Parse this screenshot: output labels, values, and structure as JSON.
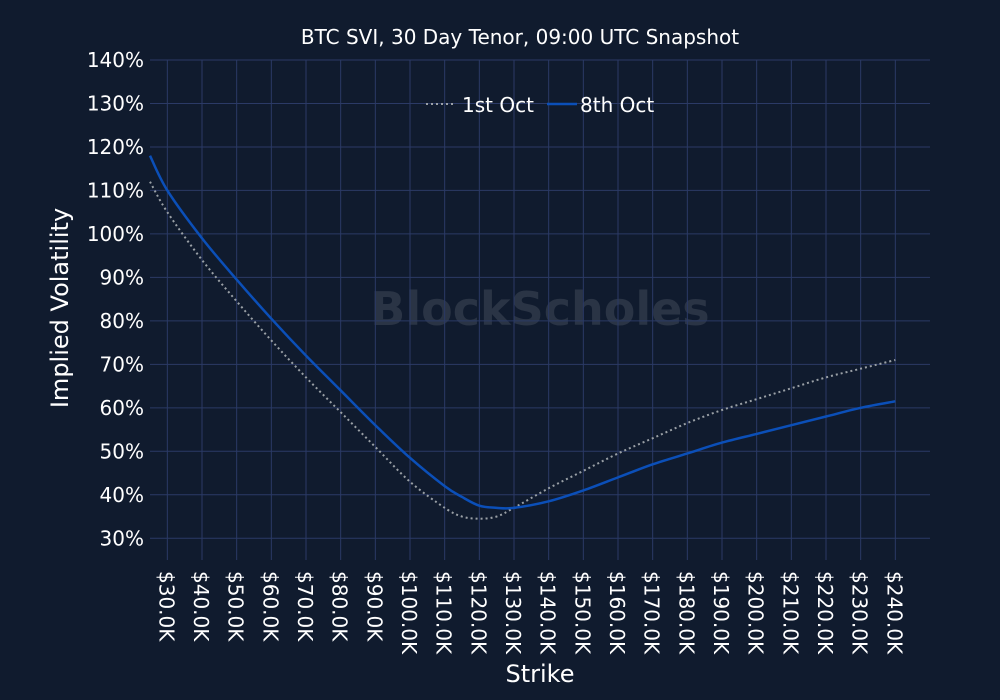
{
  "chart_data": {
    "type": "line",
    "title": "BTC SVI, 30 Day Tenor, 09:00 UTC Snapshot",
    "xlabel": "Strike",
    "ylabel": "Implied Volatility",
    "xlim": [
      25,
      250
    ],
    "ylim": [
      25,
      140
    ],
    "x_ticks": [
      30,
      40,
      50,
      60,
      70,
      80,
      90,
      100,
      110,
      120,
      130,
      140,
      150,
      160,
      170,
      180,
      190,
      200,
      210,
      220,
      230,
      240
    ],
    "x_tick_labels": [
      "$30.0K",
      "$40.0K",
      "$50.0K",
      "$60.0K",
      "$70.0K",
      "$80.0K",
      "$90.0K",
      "$100.0K",
      "$110.0K",
      "$120.0K",
      "$130.0K",
      "$140.0K",
      "$150.0K",
      "$160.0K",
      "$170.0K",
      "$180.0K",
      "$190.0K",
      "$200.0K",
      "$210.0K",
      "$220.0K",
      "$230.0K",
      "$240.0K"
    ],
    "y_ticks": [
      30,
      40,
      50,
      60,
      70,
      80,
      90,
      100,
      110,
      120,
      130,
      140
    ],
    "y_tick_labels": [
      "30%",
      "40%",
      "50%",
      "60%",
      "70%",
      "80%",
      "90%",
      "100%",
      "110%",
      "120%",
      "130%",
      "140%"
    ],
    "grid": true,
    "legend": "top-center",
    "watermark": "BlockScholes",
    "series": [
      {
        "name": "1st Oct",
        "style": "dotted",
        "color": "#9aa0a6",
        "x": [
          25,
          30,
          40,
          50,
          60,
          70,
          80,
          90,
          100,
          110,
          115,
          120,
          125,
          130,
          140,
          150,
          160,
          170,
          180,
          190,
          200,
          210,
          220,
          230,
          240
        ],
        "y": [
          112,
          105,
          94,
          84.5,
          75.5,
          67,
          59,
          51,
          43,
          37,
          35,
          34.5,
          35,
          37,
          41.5,
          45.5,
          49.5,
          53,
          56.5,
          59.5,
          62,
          64.5,
          67,
          69,
          71
        ]
      },
      {
        "name": "8th Oct",
        "style": "solid",
        "color": "#0b4fb8",
        "x": [
          25,
          30,
          40,
          50,
          60,
          70,
          80,
          90,
          100,
          110,
          115,
          120,
          125,
          130,
          140,
          150,
          160,
          170,
          180,
          190,
          200,
          210,
          220,
          230,
          240
        ],
        "y": [
          118,
          110,
          99,
          89.5,
          80.5,
          72,
          64,
          56,
          48.5,
          42,
          39.5,
          37.5,
          37,
          37,
          38.5,
          41,
          44,
          47,
          49.5,
          52,
          54,
          56,
          58,
          60,
          61.5
        ]
      }
    ]
  }
}
